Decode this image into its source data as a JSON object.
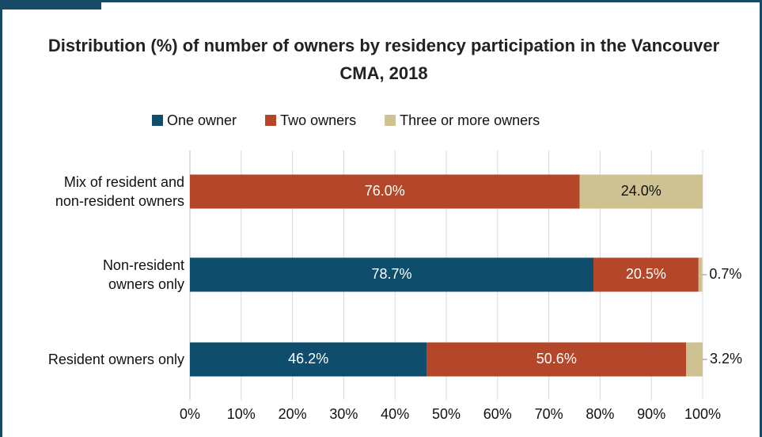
{
  "chart_data": {
    "type": "stacked_bar_horizontal",
    "title": "Distribution (%) of number of owners by residency participation in the Vancouver CMA, 2018",
    "categories": [
      "Mix of resident and\nnon-resident owners",
      "Non-resident\nowners only",
      "Resident owners only"
    ],
    "series": [
      {
        "name": "One owner",
        "color": "#0f4d6d",
        "values": [
          0,
          78.7,
          46.2
        ],
        "value_labels": [
          null,
          "78.7%",
          "46.2%"
        ]
      },
      {
        "name": "Two owners",
        "color": "#b4472a",
        "values": [
          76.0,
          20.5,
          50.6
        ],
        "value_labels": [
          "76.0%",
          "20.5%",
          "50.6%"
        ]
      },
      {
        "name": "Three or more owners",
        "color": "#cec293",
        "values": [
          24.0,
          0.7,
          3.2
        ],
        "value_labels": [
          "24.0%",
          "0.7%",
          "3.2%"
        ]
      }
    ],
    "xlim": [
      0,
      100
    ],
    "xticks": [
      {
        "value": 0,
        "label": "0%"
      },
      {
        "value": 10,
        "label": "10%"
      },
      {
        "value": 20,
        "label": "20%"
      },
      {
        "value": 30,
        "label": "30%"
      },
      {
        "value": 40,
        "label": "40%"
      },
      {
        "value": 50,
        "label": "50%"
      },
      {
        "value": 60,
        "label": "60%"
      },
      {
        "value": 70,
        "label": "70%"
      },
      {
        "value": 80,
        "label": "80%"
      },
      {
        "value": 90,
        "label": "90%"
      },
      {
        "value": 100,
        "label": "100%"
      }
    ],
    "grid": true,
    "legend": "top"
  }
}
